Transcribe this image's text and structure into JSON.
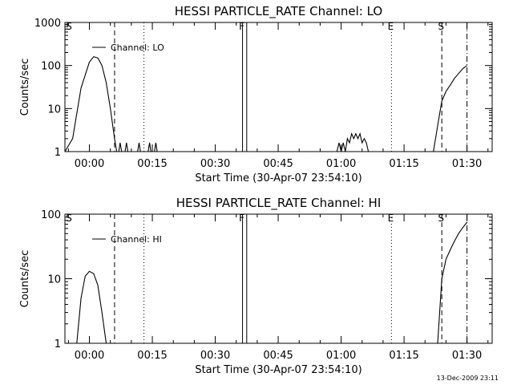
{
  "footer_timestamp": "13-Dec-2009 23:11",
  "colors": {
    "background": "#ffffff",
    "foreground": "#000000"
  },
  "chart_data": [
    {
      "type": "line",
      "title": "HESSI PARTICLE_RATE Channel: LO",
      "xlabel": "Start Time (30-Apr-07 23:54:10)",
      "ylabel": "Counts/sec",
      "yscale": "log",
      "ylim": [
        1,
        1000
      ],
      "xlim": [
        "23:54:10",
        "01:36:00"
      ],
      "x_ticks": [
        "00:00",
        "00:15",
        "00:30",
        "00:45",
        "01:00",
        "01:15",
        "01:30"
      ],
      "y_ticks": [
        "1",
        "10",
        "100",
        "1000"
      ],
      "legend": {
        "placement": "top-left",
        "entries": [
          "Channel: LO"
        ]
      },
      "markers": [
        {
          "label": "S",
          "time": "23:54:10",
          "style": "none"
        },
        {
          "label": "",
          "time": "00:06:00",
          "style": "dashed"
        },
        {
          "label": "",
          "time": "00:13:00",
          "style": "dotted"
        },
        {
          "label": "F",
          "time": "00:36:30",
          "style": "solid"
        },
        {
          "label": "",
          "time": "00:37:30",
          "style": "solid"
        },
        {
          "label": "E",
          "time": "01:12:00",
          "style": "dotted"
        },
        {
          "label": "S",
          "time": "01:24:00",
          "style": "dashed"
        },
        {
          "label": "",
          "time": "01:30:00",
          "style": "dash-dot"
        }
      ],
      "series": [
        {
          "name": "Channel: LO",
          "segments": [
            {
              "x": [
                "23:54:10",
                "23:56:00",
                "23:58:00",
                "00:00:00",
                "00:01:00",
                "00:02:00",
                "00:03:00",
                "00:04:00",
                "00:05:00",
                "00:06:00",
                "00:06:30"
              ],
              "y": [
                1,
                2,
                30,
                120,
                160,
                150,
                100,
                40,
                10,
                2,
                1
              ]
            },
            {
              "x": [
                "00:07:00",
                "00:07:20",
                "00:07:40"
              ],
              "y": [
                1,
                1.6,
                1
              ]
            },
            {
              "x": [
                "00:08:30",
                "00:08:50",
                "00:09:10"
              ],
              "y": [
                1,
                1.6,
                1
              ]
            },
            {
              "x": [
                "00:11:30",
                "00:11:50",
                "00:12:10"
              ],
              "y": [
                1,
                1.6,
                1
              ]
            },
            {
              "x": [
                "00:14:00",
                "00:14:20",
                "00:14:40"
              ],
              "y": [
                1,
                1.6,
                1
              ]
            },
            {
              "x": [
                "00:15:30",
                "00:15:50",
                "00:16:10"
              ],
              "y": [
                1,
                1.6,
                1
              ]
            },
            {
              "x": [
                "00:59:00",
                "00:59:30",
                "01:00:00",
                "01:00:30",
                "01:01:00",
                "01:01:30",
                "01:02:00",
                "01:02:30",
                "01:03:00",
                "01:03:30",
                "01:04:00",
                "01:04:30",
                "01:05:00",
                "01:05:30",
                "01:06:00",
                "01:06:30",
                "01:07:00"
              ],
              "y": [
                1,
                1.6,
                1,
                1.6,
                1,
                2,
                1.6,
                2.6,
                2,
                2.6,
                2,
                2.6,
                1.6,
                2,
                1.6,
                1,
                1
              ]
            },
            {
              "x": [
                "01:22:00",
                "01:23:00",
                "01:24:00",
                "01:25:00",
                "01:26:00",
                "01:27:00",
                "01:28:00",
                "01:29:00",
                "01:30:00"
              ],
              "y": [
                1,
                4,
                15,
                25,
                35,
                50,
                65,
                85,
                100
              ]
            }
          ]
        }
      ]
    },
    {
      "type": "line",
      "title": "HESSI PARTICLE_RATE Channel: HI",
      "xlabel": "Start Time (30-Apr-07 23:54:10)",
      "ylabel": "Counts/sec",
      "yscale": "log",
      "ylim": [
        1,
        100
      ],
      "xlim": [
        "23:54:10",
        "01:36:00"
      ],
      "x_ticks": [
        "00:00",
        "00:15",
        "00:30",
        "00:45",
        "01:00",
        "01:15",
        "01:30"
      ],
      "y_ticks": [
        "1",
        "10",
        "100"
      ],
      "legend": {
        "placement": "top-left",
        "entries": [
          "Channel: HI"
        ]
      },
      "markers": [
        {
          "label": "S",
          "time": "23:54:10",
          "style": "none"
        },
        {
          "label": "",
          "time": "00:06:00",
          "style": "dashed"
        },
        {
          "label": "",
          "time": "00:13:00",
          "style": "dotted"
        },
        {
          "label": "F",
          "time": "00:36:30",
          "style": "solid"
        },
        {
          "label": "",
          "time": "00:37:30",
          "style": "solid"
        },
        {
          "label": "E",
          "time": "01:12:00",
          "style": "dotted"
        },
        {
          "label": "S",
          "time": "01:24:00",
          "style": "dashed"
        },
        {
          "label": "",
          "time": "01:30:00",
          "style": "dash-dot"
        }
      ],
      "series": [
        {
          "name": "Channel: HI",
          "segments": [
            {
              "x": [
                "23:57:00",
                "23:58:00",
                "23:59:00",
                "00:00:00",
                "00:01:00",
                "00:02:00",
                "00:03:00",
                "00:04:00"
              ],
              "y": [
                1,
                5,
                11,
                13,
                12,
                8,
                3,
                1
              ]
            },
            {
              "x": [
                "01:23:00",
                "01:24:00",
                "01:25:00",
                "01:26:00",
                "01:27:00",
                "01:28:00",
                "01:29:00",
                "01:30:00"
              ],
              "y": [
                1,
                10,
                20,
                28,
                38,
                50,
                62,
                75
              ]
            }
          ]
        }
      ]
    }
  ]
}
